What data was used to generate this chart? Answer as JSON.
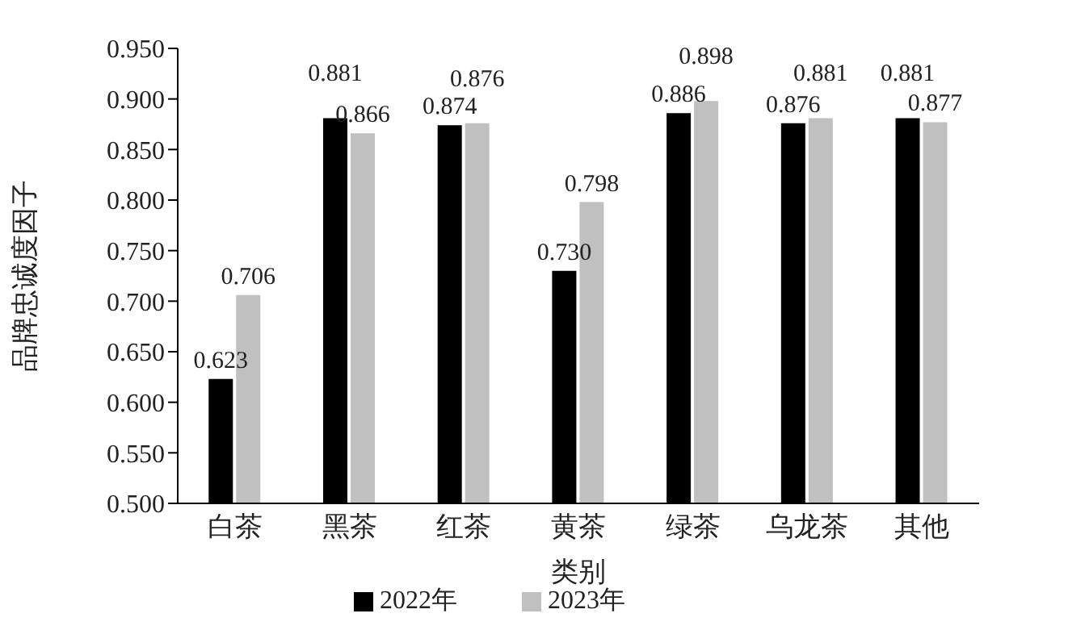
{
  "chart_data": {
    "type": "bar",
    "xlabel": "类别",
    "ylabel": "品牌忠诚度因子",
    "categories": [
      "白茶",
      "黑茶",
      "红茶",
      "黄茶",
      "绿茶",
      "乌龙茶",
      "其他"
    ],
    "series": [
      {
        "name": "2022年",
        "color": "#000000",
        "values": [
          0.623,
          0.881,
          0.874,
          0.73,
          0.886,
          0.876,
          0.881
        ],
        "value_labels": [
          "0.623",
          "0.881",
          "0.874",
          "0.730",
          "0.886",
          "0.876",
          "0.881"
        ]
      },
      {
        "name": "2023年",
        "color": "#c0c0c0",
        "values": [
          0.706,
          0.866,
          0.876,
          0.798,
          0.898,
          0.881,
          0.877
        ],
        "value_labels": [
          "0.706",
          "0.866",
          "0.876",
          "0.798",
          "0.898",
          "0.881",
          "0.877"
        ]
      }
    ],
    "ylim": [
      0.5,
      0.95
    ],
    "yticks": [
      {
        "value": 0.5,
        "label": "0.500"
      },
      {
        "value": 0.55,
        "label": "0.550"
      },
      {
        "value": 0.6,
        "label": "0.600"
      },
      {
        "value": 0.65,
        "label": "0.650"
      },
      {
        "value": 0.7,
        "label": "0.700"
      },
      {
        "value": 0.75,
        "label": "0.750"
      },
      {
        "value": 0.8,
        "label": "0.800"
      },
      {
        "value": 0.85,
        "label": "0.850"
      },
      {
        "value": 0.9,
        "label": "0.900"
      },
      {
        "value": 0.95,
        "label": "0.950"
      }
    ],
    "grid": false,
    "legend": "bottom"
  }
}
